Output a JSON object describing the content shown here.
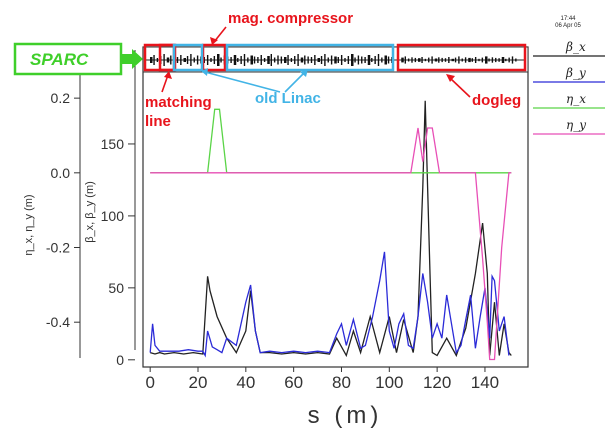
{
  "chart_data": {
    "type": "line",
    "xlabel": "s (m)",
    "ylabel_beta": "β_x, β_y (m)",
    "ylabel_eta": "η_x, η_y (m)",
    "x_ticks": [
      "0",
      "20",
      "40",
      "60",
      "80",
      "100",
      "120",
      "140"
    ],
    "y_ticks_beta": [
      "0",
      "50",
      "100",
      "150"
    ],
    "y_ticks_eta": [
      "-0.4",
      "-0.2",
      "0.0",
      "0.2"
    ],
    "xlim": [
      -3,
      158
    ],
    "ylim_beta": [
      -5,
      200
    ],
    "ylim_eta": [
      -0.52,
      0.27
    ],
    "timestamp_line1": "17:44",
    "timestamp_line2": "06 Apr 05",
    "legend": [
      {
        "label": "β_x",
        "color": "#222222"
      },
      {
        "label": "β_y",
        "color": "#2b2bd8"
      },
      {
        "label": "η_x",
        "color": "#5ad447"
      },
      {
        "label": "η_y",
        "color": "#e84fb6"
      }
    ],
    "series": [
      {
        "name": "β_x",
        "color": "#222222",
        "x": [
          0,
          2,
          4,
          6,
          10,
          14,
          18,
          22,
          24,
          25,
          28,
          32,
          36,
          40,
          42,
          44,
          46,
          50,
          55,
          60,
          65,
          70,
          75,
          78,
          82,
          85,
          88,
          92,
          96,
          100,
          103,
          106,
          110,
          112,
          114,
          115,
          116,
          117,
          118,
          120,
          124,
          128,
          132,
          136,
          139,
          141,
          142,
          144,
          146,
          148,
          150,
          151
        ],
        "y": [
          5,
          4,
          5,
          4,
          5,
          4,
          5,
          4,
          58,
          48,
          30,
          15,
          5,
          20,
          48,
          20,
          5,
          5,
          4,
          5,
          4,
          5,
          4,
          15,
          3,
          20,
          5,
          30,
          5,
          30,
          5,
          28,
          5,
          30,
          120,
          180,
          120,
          60,
          5,
          3,
          15,
          3,
          22,
          60,
          95,
          60,
          3,
          40,
          3,
          25,
          5,
          3
        ]
      },
      {
        "name": "β_y",
        "color": "#2b2bd8",
        "x": [
          0,
          1,
          2,
          4,
          8,
          12,
          16,
          20,
          22,
          23,
          24,
          26,
          28,
          30,
          32,
          36,
          40,
          42,
          44,
          46,
          50,
          55,
          60,
          65,
          70,
          75,
          78,
          80,
          82,
          85,
          88,
          90,
          93,
          96,
          98,
          100,
          102,
          104,
          106,
          108,
          110,
          112,
          114,
          116,
          118,
          120,
          122,
          124,
          126,
          128,
          130,
          132,
          134,
          136,
          138,
          140,
          142,
          143,
          144,
          146,
          148,
          150
        ],
        "y": [
          5,
          25,
          10,
          6,
          6,
          6,
          7,
          6,
          6,
          3,
          20,
          9,
          7,
          5,
          15,
          10,
          40,
          52,
          20,
          5,
          6,
          5,
          6,
          5,
          6,
          5,
          18,
          25,
          10,
          28,
          8,
          10,
          30,
          55,
          75,
          20,
          8,
          25,
          32,
          10,
          8,
          30,
          60,
          40,
          15,
          25,
          15,
          45,
          25,
          5,
          10,
          28,
          45,
          8,
          30,
          50,
          15,
          58,
          55,
          20,
          30,
          3
        ]
      },
      {
        "name": "η_x",
        "color": "#5ad447",
        "x": [
          0,
          24,
          27,
          29,
          32,
          114,
          151
        ],
        "y": [
          0,
          0,
          0.17,
          0.17,
          0,
          0,
          0
        ]
      },
      {
        "name": "η_y",
        "color": "#e84fb6",
        "x": [
          0,
          106,
          109,
          112,
          114,
          116,
          118,
          121,
          124,
          136,
          139,
          141,
          142,
          144,
          147,
          150,
          151
        ],
        "y": [
          0,
          0,
          0,
          0.12,
          0.03,
          0.12,
          0.12,
          0,
          0,
          0,
          -0.23,
          -0.4,
          -0.5,
          -0.5,
          -0.2,
          0,
          0
        ]
      }
    ],
    "annotations": {
      "sparc": "SPARC",
      "mag_compressor": "mag. compressor",
      "matching_line_1": "matching",
      "matching_line_2": "line",
      "old_linac": "old Linac",
      "dogleg": "dogleg"
    }
  }
}
